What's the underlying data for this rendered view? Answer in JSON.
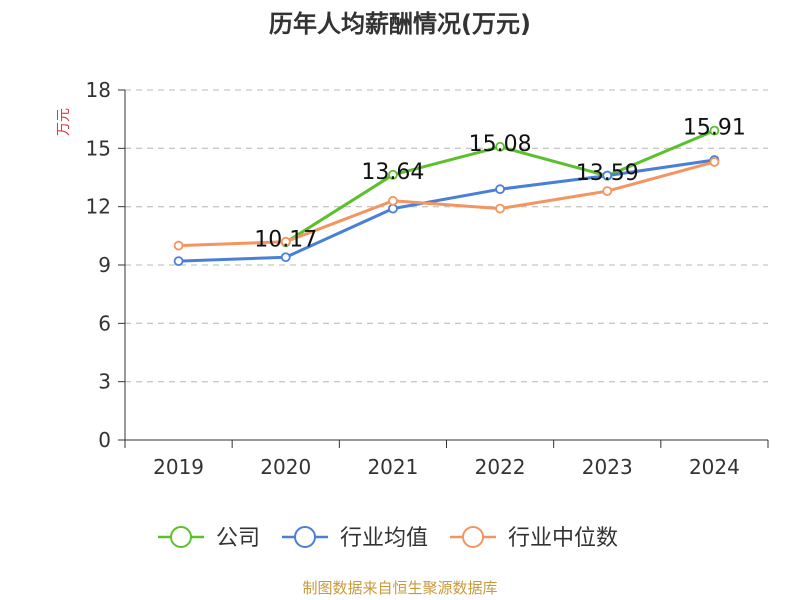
{
  "chart_data": {
    "type": "line",
    "title": "历年人均薪酬情况(万元)",
    "ylabel": "万元",
    "xlabel": "",
    "categories": [
      "2019",
      "2020",
      "2021",
      "2022",
      "2023",
      "2024"
    ],
    "ylim": [
      0,
      18
    ],
    "yticks": [
      0,
      3,
      6,
      9,
      12,
      15,
      18
    ],
    "grid": true,
    "legend_position": "bottom",
    "series": [
      {
        "name": "公司",
        "color": "#5ac02c",
        "values": [
          null,
          10.17,
          13.64,
          15.08,
          13.59,
          15.91
        ],
        "show_labels": true
      },
      {
        "name": "行业均值",
        "color": "#4a7fd8",
        "values": [
          9.2,
          9.4,
          11.9,
          12.9,
          13.6,
          14.4
        ],
        "show_labels": false
      },
      {
        "name": "行业中位数",
        "color": "#f39560",
        "values": [
          10.0,
          10.2,
          12.3,
          11.9,
          12.8,
          14.3
        ],
        "show_labels": false
      }
    ],
    "data_labels": [
      "10.17",
      "13.64",
      "15.08",
      "13.59",
      "15.91"
    ]
  },
  "source": "制图数据来自恒生聚源数据库"
}
